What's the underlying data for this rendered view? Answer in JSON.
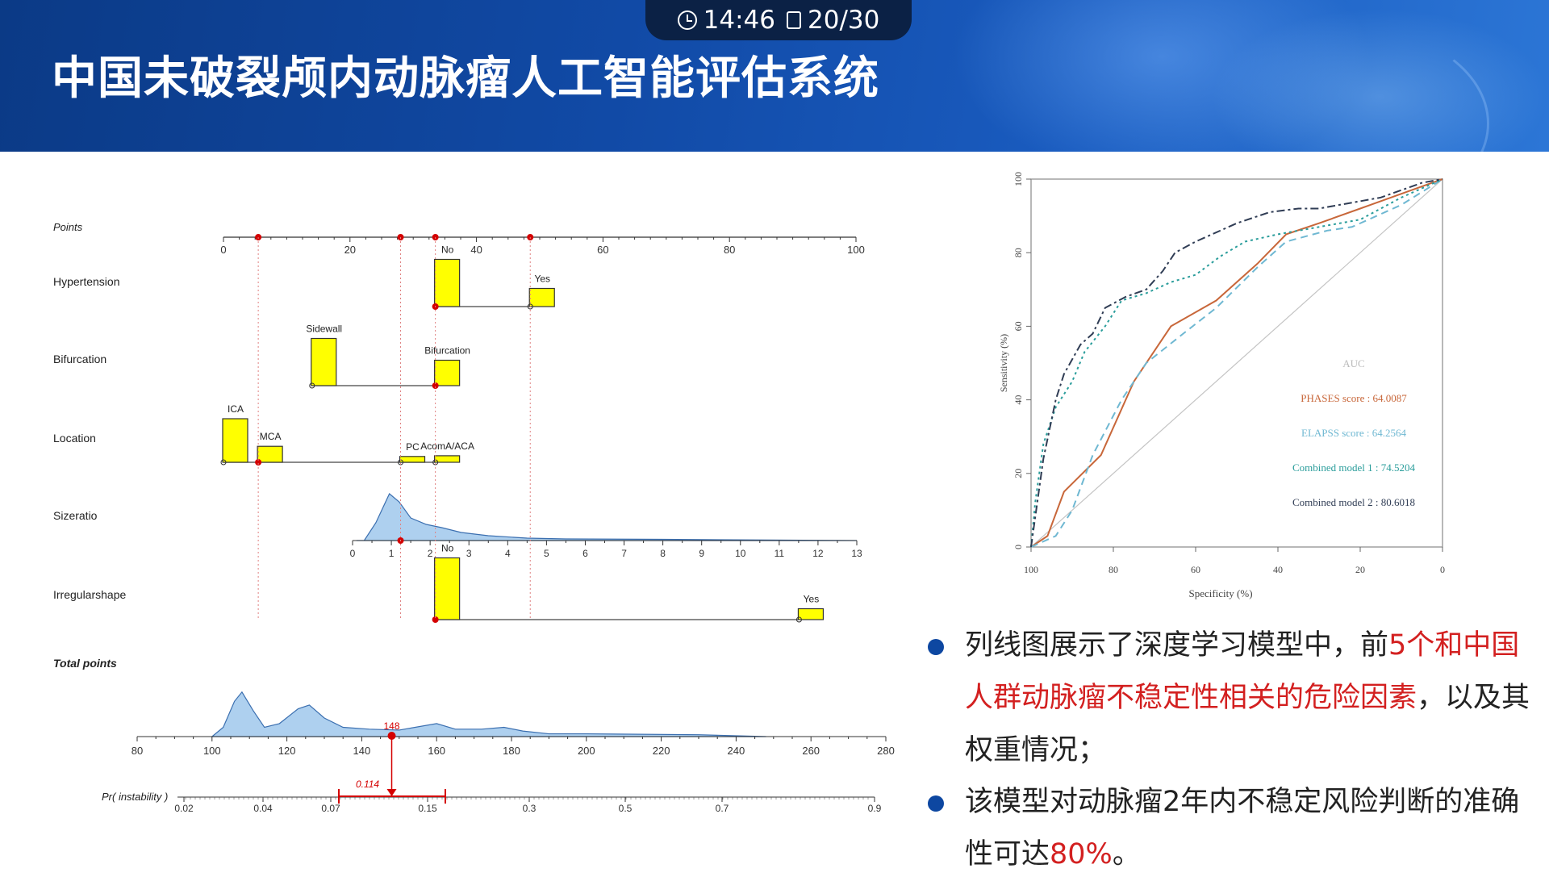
{
  "header": {
    "title": "中国未破裂颅内动脉瘤人工智能评估系统",
    "time": "14:46",
    "page": "20/30"
  },
  "colors": {
    "header_bg": "#114aa6",
    "accent_red": "#d32020",
    "bar_yellow": "#ffff00",
    "density_blue": "#aed0ef"
  },
  "icons": {
    "clock": "clock-icon",
    "page": "page-icon"
  },
  "nomogram": {
    "type": "nomogram",
    "variables": [
      {
        "name": "Points",
        "ticks": [
          0,
          20,
          40,
          60,
          80,
          100
        ],
        "range": [
          0,
          100
        ],
        "selected_points": [
          5.5,
          28,
          33.5,
          48.5
        ]
      },
      {
        "name": "Hypertension",
        "levels": [
          {
            "label": "No",
            "points": 33.5,
            "freq": 0.65
          },
          {
            "label": "Yes",
            "points": 48.5,
            "freq": 0.25
          }
        ]
      },
      {
        "name": "Bifurcation",
        "levels": [
          {
            "label": "Sidewall",
            "points": 14,
            "freq": 0.65
          },
          {
            "label": "Bifurcation",
            "points": 33.5,
            "freq": 0.35
          }
        ]
      },
      {
        "name": "Location",
        "levels": [
          {
            "label": "ICA",
            "points": 0,
            "freq": 0.6
          },
          {
            "label": "MCA",
            "points": 5.5,
            "freq": 0.22
          },
          {
            "label": "PC",
            "points": 28,
            "freq": 0.08
          },
          {
            "label": "AcomA/ACA",
            "points": 33.5,
            "freq": 0.09
          }
        ]
      },
      {
        "name": "Sizeratio",
        "ticks": [
          0,
          1,
          2,
          3,
          4,
          5,
          6,
          7,
          8,
          9,
          10,
          11,
          12,
          13
        ],
        "range": [
          0,
          13
        ]
      },
      {
        "name": "Irregularshape",
        "levels": [
          {
            "label": "No",
            "points": 33.5,
            "freq": 0.85
          },
          {
            "label": "Yes",
            "points": 91,
            "freq": 0.15
          }
        ]
      }
    ],
    "total_points": {
      "name": "Total points",
      "ticks": [
        80,
        100,
        120,
        140,
        160,
        180,
        200,
        220,
        240,
        260,
        280
      ],
      "range": [
        80,
        280
      ],
      "marked": 148
    },
    "probability": {
      "name": "Pr( instability )",
      "ticks": [
        "0.02",
        "0.04",
        "0.07",
        "0.15",
        "0.3",
        "0.5",
        "0.7",
        "0.9"
      ],
      "marked": "0.114"
    }
  },
  "chart_data": {
    "type": "line",
    "x_label": "Specificity (%)",
    "y_label": "Sensitivity (%)",
    "x_ticks": [
      100,
      80,
      60,
      40,
      20,
      0
    ],
    "y_ticks": [
      0,
      20,
      40,
      60,
      80,
      100
    ],
    "xlim": [
      100,
      0
    ],
    "ylim": [
      0,
      100
    ],
    "legend_title": "AUC",
    "series": [
      {
        "name": "PHASES score : 64.0087",
        "color": "#c8673a",
        "x": [
          100,
          96,
          92,
          83,
          75,
          66,
          55,
          45,
          38,
          30,
          20,
          10,
          0
        ],
        "y": [
          0,
          3,
          15,
          25,
          45,
          60,
          67,
          77,
          85,
          88,
          92,
          96,
          100
        ]
      },
      {
        "name": "ELAPSS score : 64.2564",
        "color": "#6fb8d2",
        "x": [
          100,
          94,
          90,
          85,
          78,
          72,
          63,
          55,
          45,
          38,
          28,
          22,
          10,
          0
        ],
        "y": [
          0,
          3,
          10,
          25,
          40,
          50,
          58,
          65,
          76,
          83,
          86,
          87,
          93,
          100
        ]
      },
      {
        "name": "Combined model 1 : 74.5204",
        "color": "#2a9d9b",
        "x": [
          100,
          99,
          97,
          94,
          90,
          87,
          82,
          78,
          72,
          66,
          60,
          54,
          48,
          40,
          30,
          20,
          10,
          0
        ],
        "y": [
          0,
          12,
          28,
          38,
          45,
          53,
          60,
          67,
          69,
          72,
          74,
          79,
          83,
          85,
          87,
          89,
          95,
          100
        ]
      },
      {
        "name": "Combined model 2 : 80.6018",
        "color": "#303d55",
        "x": [
          100,
          99,
          97,
          94,
          92,
          88,
          85,
          82,
          77,
          72,
          68,
          65,
          60,
          56,
          50,
          42,
          35,
          30,
          25,
          20,
          15,
          10,
          5,
          0
        ],
        "y": [
          0,
          8,
          24,
          40,
          47,
          55,
          58,
          65,
          68,
          70,
          75,
          80,
          83,
          85,
          88,
          91,
          92,
          92,
          93,
          94,
          95,
          97,
          99,
          100
        ]
      }
    ],
    "grid": false,
    "legend_position": "bottom-right"
  },
  "bullets": [
    {
      "parts": [
        {
          "text": "列线图展示了深度学习模型中，前",
          "red": false
        },
        {
          "text": "5个和中国人群动脉瘤不稳定性相关的危险因素",
          "red": true
        },
        {
          "text": "，以及其权重情况；",
          "red": false
        }
      ]
    },
    {
      "parts": [
        {
          "text": "该模型对动脉瘤2年内不稳定风险判断的准确性可达",
          "red": false
        },
        {
          "text": "80%",
          "red": true
        },
        {
          "text": "。",
          "red": false
        }
      ]
    }
  ]
}
